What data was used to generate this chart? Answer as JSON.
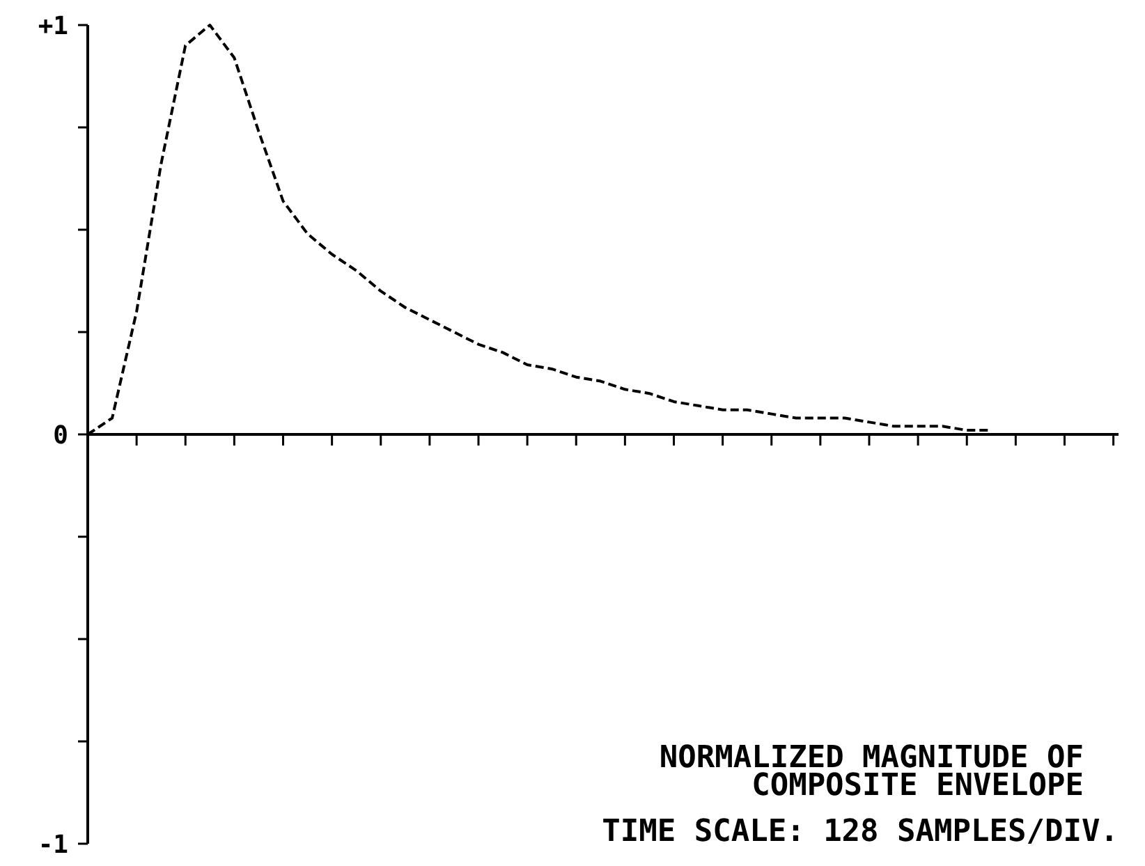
{
  "chart_data": {
    "type": "line",
    "title": "NORMALIZED MAGNITUDE OF\nCOMPOSITE ENVELOPE",
    "annotations": [
      "TIME SCALE: 128 SAMPLES/DIV."
    ],
    "categories": [
      null,
      null,
      null,
      null,
      null,
      null,
      null,
      null,
      null,
      null,
      null,
      null,
      null,
      null,
      null,
      null,
      null,
      null,
      null,
      null,
      null,
      null,
      null,
      null,
      null,
      null,
      null,
      null,
      null,
      null,
      null,
      null,
      null,
      null,
      null,
      null,
      null,
      null,
      null,
      null,
      null,
      null,
      null
    ],
    "series": [
      {
        "color": "#000000",
        "values": [
          0,
          0.04,
          0.3,
          0.66,
          0.95,
          1.0,
          0.92,
          0.74,
          0.57,
          0.49,
          0.44,
          0.4,
          0.35,
          0.31,
          0.28,
          0.25,
          0.22,
          0.2,
          0.17,
          0.16,
          0.14,
          0.13,
          0.11,
          0.1,
          0.08,
          0.07,
          0.06,
          0.06,
          0.05,
          0.04,
          0.04,
          0.04,
          0.03,
          0.02,
          0.02,
          0.02,
          0.01,
          0.01,
          null,
          null,
          null,
          null,
          null
        ]
      }
    ],
    "ylim": [
      -1,
      1
    ],
    "yticks": [
      {
        "value": -1,
        "label": "-1"
      },
      {
        "value": -0.75,
        "label": null
      },
      {
        "value": -0.5,
        "label": null
      },
      {
        "value": -0.25,
        "label": null
      },
      {
        "value": 0,
        "label": "0"
      },
      {
        "value": 0.25,
        "label": null
      },
      {
        "value": 0.5,
        "label": null
      },
      {
        "value": 0.75,
        "label": null
      },
      {
        "value": 1,
        "label": "+1"
      }
    ],
    "line_style": "dashed"
  }
}
